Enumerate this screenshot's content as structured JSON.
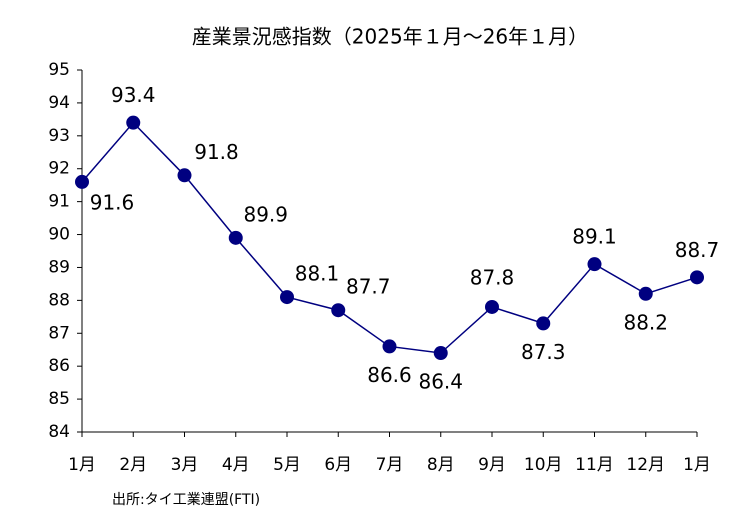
{
  "chart_data": {
    "type": "line",
    "title": "産業景況感指数（2025年１月～26年１月）",
    "source": "出所:タイ工業連盟(FTI)",
    "categories": [
      "1月",
      "2月",
      "3月",
      "4月",
      "5月",
      "6月",
      "7月",
      "8月",
      "9月",
      "10月",
      "11月",
      "12月",
      "1月"
    ],
    "series": [
      {
        "name": "産業景況感指数",
        "color": "#000080",
        "values": [
          91.6,
          93.4,
          91.8,
          89.9,
          88.1,
          87.7,
          86.6,
          86.4,
          87.8,
          87.3,
          89.1,
          88.2,
          88.7
        ]
      }
    ],
    "ylim": [
      84,
      95
    ],
    "yticks": [
      84,
      85,
      86,
      87,
      88,
      89,
      90,
      91,
      92,
      93,
      94,
      95
    ],
    "grid": false
  }
}
